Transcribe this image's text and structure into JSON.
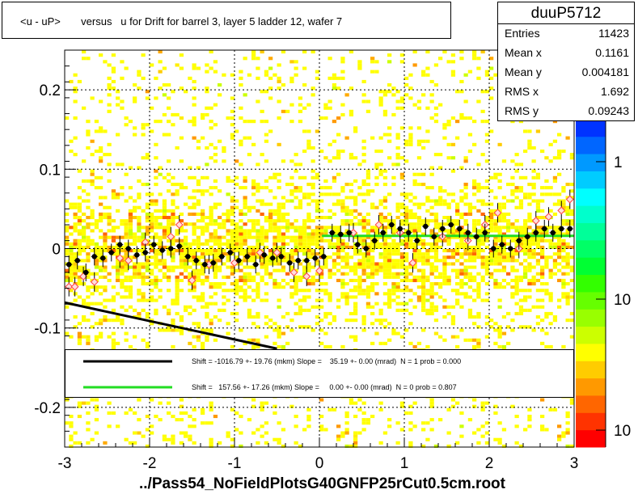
{
  "chart_data": {
    "type": "scatter",
    "title": "<u - uP>       versus   u for Drift for barrel 3, layer 5 ladder 12, wafer 7",
    "xlabel": "../Pass54_NoFieldPlotsG40GNFP25rCut0.5cm.root",
    "ylabel": "",
    "xlim": [
      -3,
      3
    ],
    "ylim": [
      -0.25,
      0.25
    ],
    "x_ticks": [
      "-3",
      "-2",
      "-1",
      "0",
      "1",
      "2",
      "3"
    ],
    "y_ticks": [
      "-0.2",
      "-0.1",
      "0",
      "0.1",
      "0.2"
    ],
    "z_ticks": [
      "1",
      "10",
      "10"
    ],
    "grid": true,
    "stats": {
      "name": "duuP5712",
      "rows": [
        {
          "label": "Entries",
          "value": "11423"
        },
        {
          "label": "Mean x",
          "value": "0.1161"
        },
        {
          "label": "Mean y",
          "value": "0.004181"
        },
        {
          "label": "RMS x",
          "value": "1.692"
        },
        {
          "label": "RMS y",
          "value": "0.09243"
        }
      ]
    },
    "fits": [
      {
        "color": "#000000",
        "text": "Shift = -1016.79 +- 19.76 (mkm) Slope =    35.19 +- 0.00 (mrad)  N = 1 prob = 0.000",
        "x": [
          -3,
          -0.5
        ],
        "y": [
          -0.068,
          -0.126
        ]
      },
      {
        "color": "#22dd22",
        "text": "Shift =   157.56 +- 17.26 (mkm) Slope =     0.00 +- 0.00 (mrad)  N = 0 prob = 0.807",
        "x": [
          0.03,
          3
        ],
        "y": [
          0.016,
          0.016
        ]
      }
    ],
    "profile_black": [
      [
        -2.95,
        -0.02
      ],
      [
        -2.85,
        -0.015
      ],
      [
        -2.75,
        -0.03
      ],
      [
        -2.65,
        -0.01
      ],
      [
        -2.55,
        -0.012
      ],
      [
        -2.45,
        -0.005
      ],
      [
        -2.35,
        0.005
      ],
      [
        -2.25,
        0.0
      ],
      [
        -2.15,
        -0.008
      ],
      [
        -2.05,
        -0.005
      ],
      [
        -1.95,
        0.005
      ],
      [
        -1.85,
        -0.002
      ],
      [
        -1.75,
        0.0
      ],
      [
        -1.65,
        0.003
      ],
      [
        -1.55,
        -0.01
      ],
      [
        -1.45,
        -0.015
      ],
      [
        -1.35,
        -0.02
      ],
      [
        -1.25,
        -0.018
      ],
      [
        -1.15,
        -0.01
      ],
      [
        -1.05,
        -0.005
      ],
      [
        -0.95,
        -0.015
      ],
      [
        -0.85,
        -0.01
      ],
      [
        -0.75,
        -0.02
      ],
      [
        -0.65,
        -0.008
      ],
      [
        -0.55,
        -0.012
      ],
      [
        -0.45,
        -0.01
      ],
      [
        -0.35,
        -0.018
      ],
      [
        -0.25,
        -0.015
      ],
      [
        -0.15,
        -0.015
      ],
      [
        -0.05,
        -0.012
      ],
      [
        0.05,
        -0.01
      ],
      [
        0.15,
        0.02
      ],
      [
        0.25,
        0.018
      ],
      [
        0.35,
        0.02
      ],
      [
        0.45,
        0.005
      ],
      [
        0.55,
        0.0
      ],
      [
        0.65,
        0.01
      ],
      [
        0.75,
        0.02
      ],
      [
        0.85,
        0.03
      ],
      [
        0.95,
        0.025
      ],
      [
        1.05,
        0.02
      ],
      [
        1.15,
        0.01
      ],
      [
        1.25,
        0.028
      ],
      [
        1.35,
        0.015
      ],
      [
        1.45,
        0.025
      ],
      [
        1.55,
        0.03
      ],
      [
        1.65,
        0.025
      ],
      [
        1.75,
        0.02
      ],
      [
        1.85,
        0.015
      ],
      [
        1.95,
        0.02
      ],
      [
        2.05,
        0.0
      ],
      [
        2.15,
        0.005
      ],
      [
        2.25,
        0.0
      ],
      [
        2.35,
        0.01
      ],
      [
        2.45,
        0.015
      ],
      [
        2.55,
        0.02
      ],
      [
        2.65,
        0.025
      ],
      [
        2.75,
        0.02
      ],
      [
        2.85,
        0.025
      ],
      [
        2.95,
        0.025
      ]
    ],
    "profile_pink": [
      [
        -2.95,
        -0.048
      ],
      [
        -2.88,
        -0.048
      ],
      [
        -2.78,
        -0.035
      ],
      [
        -2.65,
        -0.042
      ],
      [
        -2.35,
        -0.012
      ],
      [
        -2.25,
        -0.015
      ],
      [
        -2.05,
        0.008
      ],
      [
        -1.75,
        0.015
      ],
      [
        -1.65,
        0.03
      ],
      [
        -1.5,
        -0.04
      ],
      [
        -1.3,
        -0.02
      ],
      [
        -1.0,
        -0.018
      ],
      [
        -0.7,
        -0.005
      ],
      [
        -0.5,
        -0.005
      ],
      [
        -0.3,
        -0.03
      ],
      [
        -0.15,
        -0.035
      ],
      [
        0.0,
        -0.028
      ],
      [
        0.4,
        0.02
      ],
      [
        0.7,
        0.03
      ],
      [
        0.95,
        0.02
      ],
      [
        1.1,
        -0.018
      ],
      [
        1.45,
        0.015
      ],
      [
        1.75,
        0.01
      ],
      [
        1.95,
        0.03
      ],
      [
        2.1,
        0.045
      ],
      [
        2.35,
        0.0
      ],
      [
        2.55,
        0.035
      ],
      [
        2.7,
        0.04
      ],
      [
        2.85,
        0.048
      ],
      [
        2.95,
        0.062
      ]
    ],
    "colorscale": [
      "#ff0000",
      "#ff3300",
      "#ff6600",
      "#ff9900",
      "#ffcc00",
      "#ffff00",
      "#ccff00",
      "#99ff00",
      "#66ff00",
      "#33ff00",
      "#00ff33",
      "#00ff66",
      "#00ff99",
      "#00ffcc",
      "#00ffff",
      "#00ccff",
      "#0099ff",
      "#0066ff",
      "#0033ff",
      "#0000ff",
      "#3300ff",
      "#6600ff",
      "#9900ff"
    ]
  }
}
